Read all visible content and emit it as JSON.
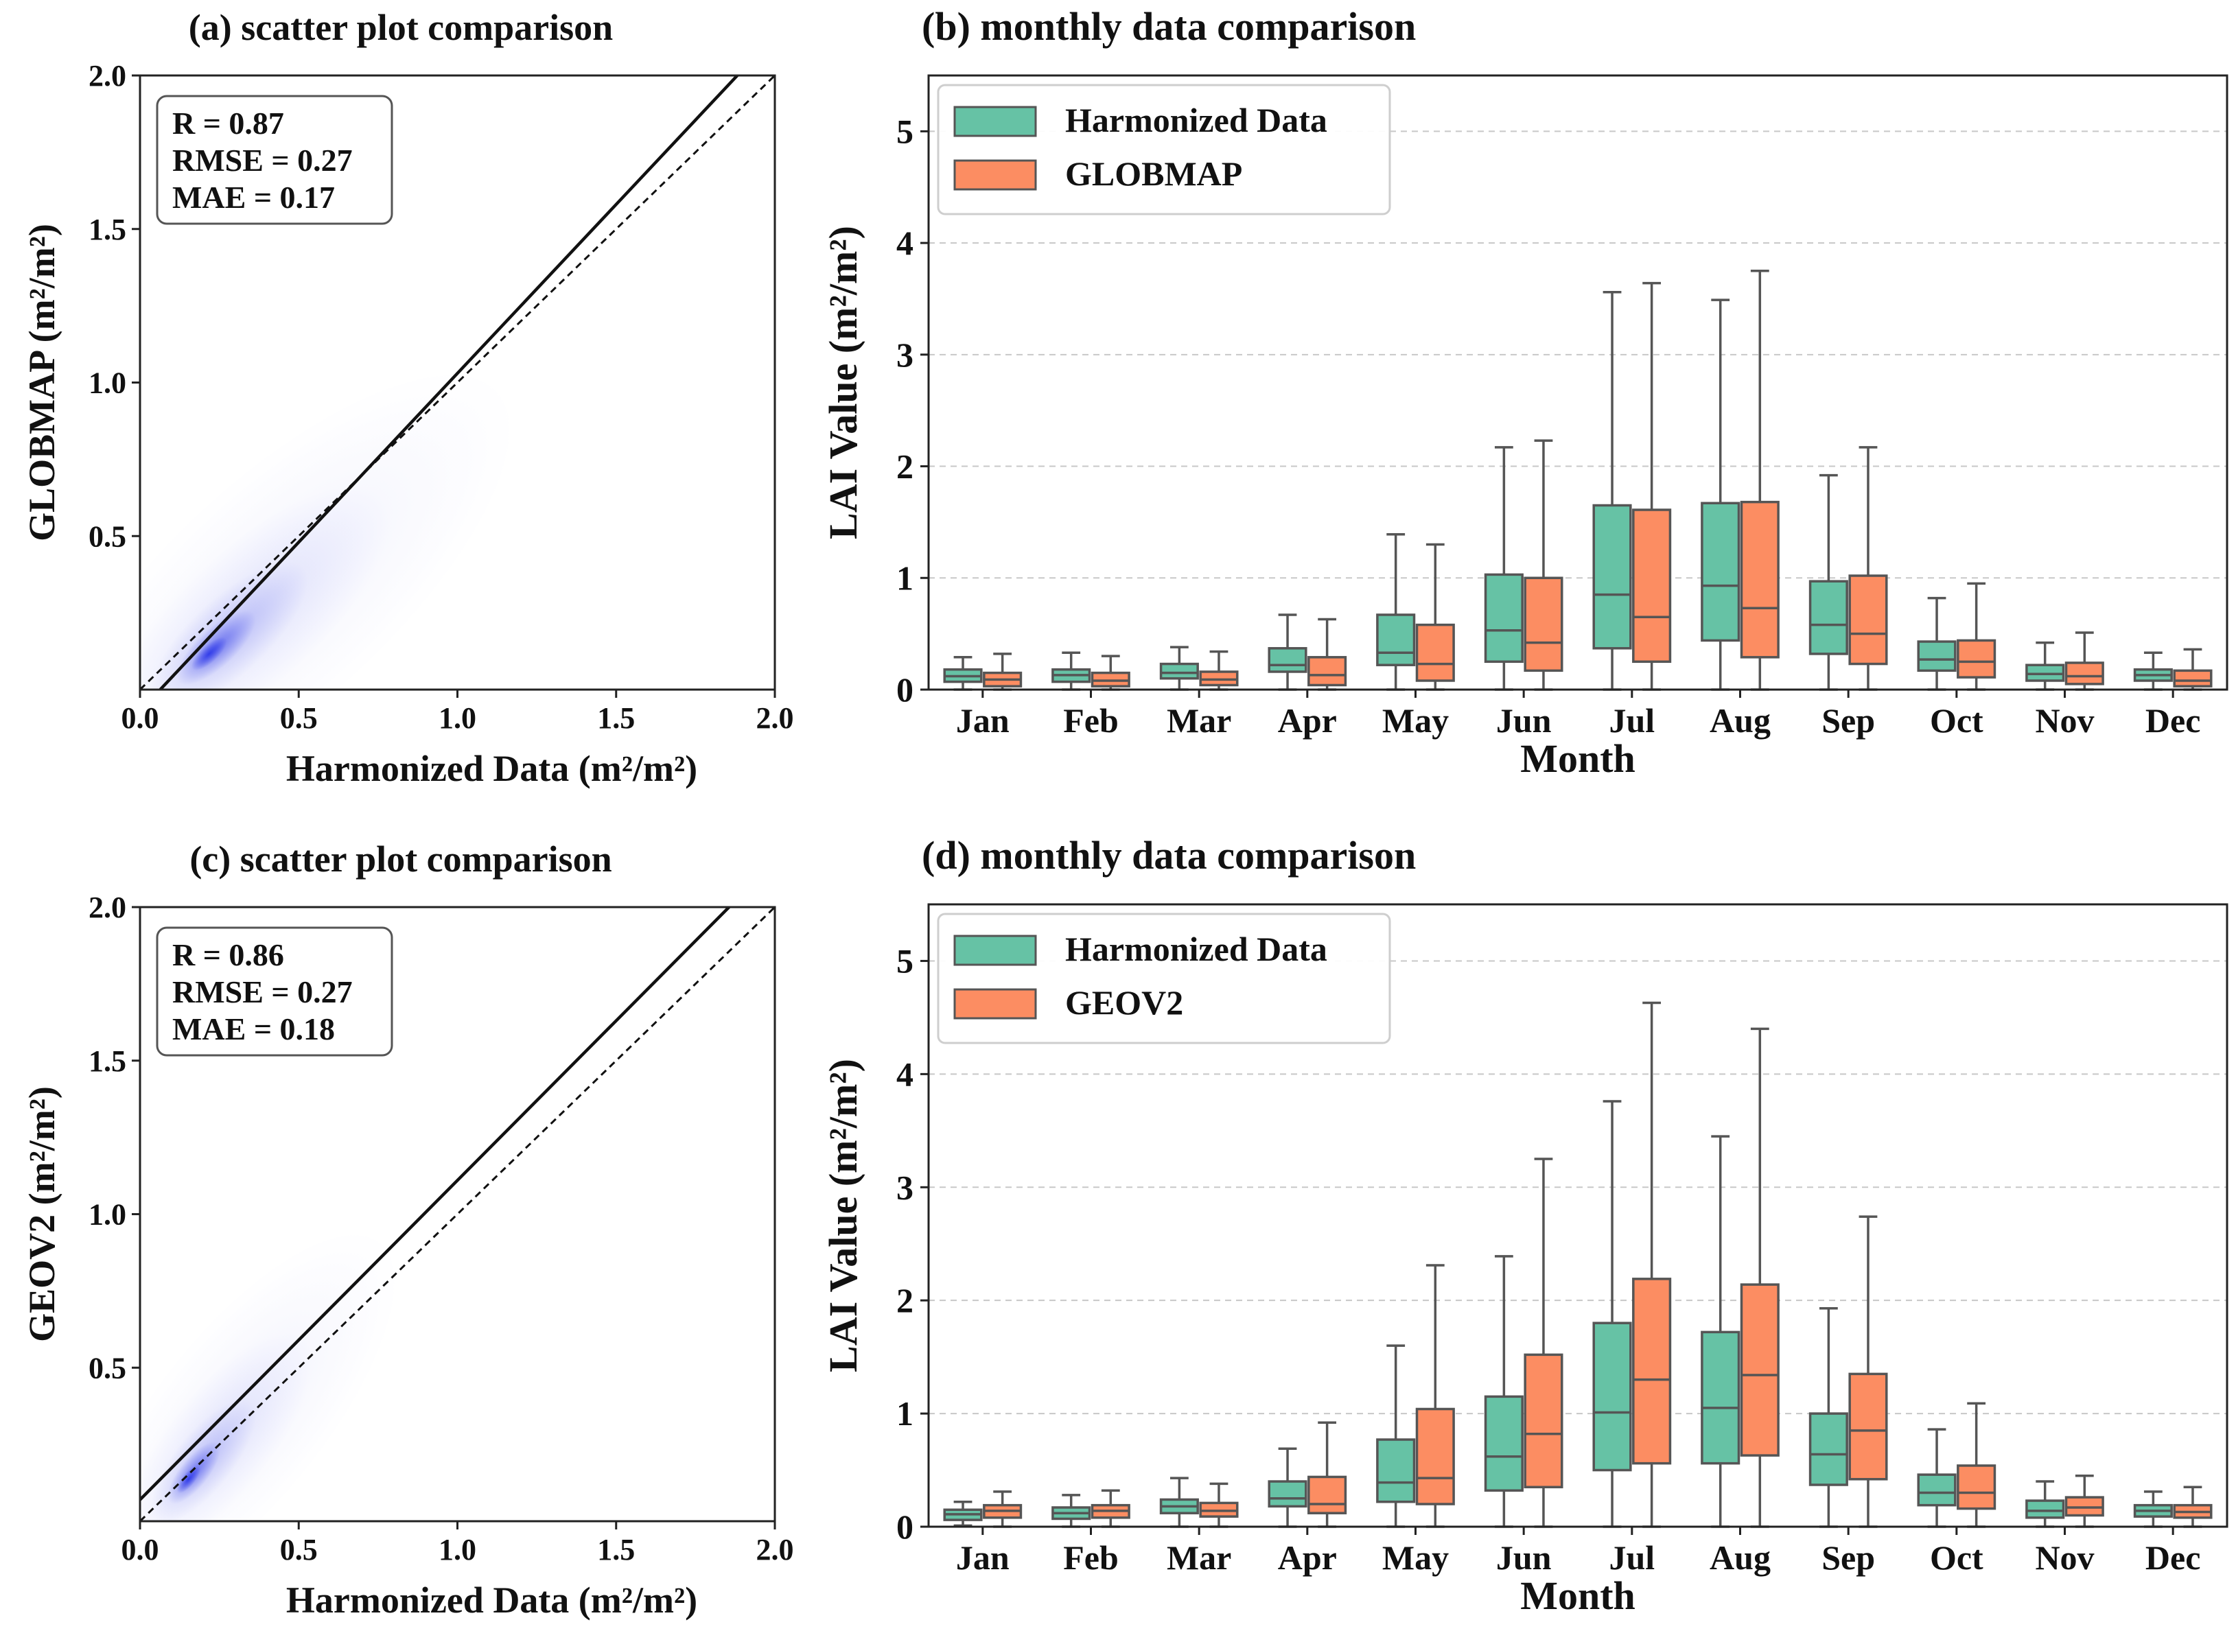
{
  "figure": {
    "colors": {
      "harmonized": "#66c2a5",
      "comparison": "#fc8d62",
      "density": "#2a35e8",
      "box_edge": "#555555",
      "axis": "#222222",
      "grid": "#c8c8c8"
    },
    "month_axis_label": "Month",
    "lai_axis_label": "LAI  Value (m²/m²)"
  },
  "chart_data": [
    {
      "id": "a",
      "type": "scatter",
      "title": "(a) scatter plot comparison",
      "xlabel": "Harmonized Data (m²/m²)",
      "ylabel": "GLOBMAP (m²/m²)",
      "xlim": [
        0,
        2
      ],
      "ylim": [
        0,
        2
      ],
      "xticks": [
        "0.0",
        "0.5",
        "1.0",
        "1.5",
        "2.0"
      ],
      "yticks": [
        "0.5",
        "1.0",
        "1.5",
        "2.0"
      ],
      "stats": [
        "R = 0.87",
        "RMSE = 0.27",
        "MAE = 0.17"
      ],
      "fit_line": {
        "slope": 1.1,
        "intercept": -0.07
      },
      "one_to_one": true,
      "density": {
        "center": [
          0.2,
          0.1
        ],
        "spread": 0.16,
        "trend_slope": 0.92
      }
    },
    {
      "id": "b",
      "type": "box",
      "title": "(b) monthly data comparison",
      "xlabel": "Month",
      "ylabel": "LAI  Value (m²/m²)",
      "ylim": [
        0,
        5.5
      ],
      "yticks": [
        "0",
        "1",
        "2",
        "3",
        "4",
        "5"
      ],
      "categories": [
        "Jan",
        "Feb",
        "Mar",
        "Apr",
        "May",
        "Jun",
        "Jul",
        "Aug",
        "Sep",
        "Oct",
        "Nov",
        "Dec"
      ],
      "legend": [
        "Harmonized Data",
        "GLOBMAP"
      ],
      "series": [
        {
          "name": "Harmonized Data",
          "boxes": [
            [
              0,
              0.07,
              0.12,
              0.18,
              0.29
            ],
            [
              0,
              0.07,
              0.13,
              0.18,
              0.33
            ],
            [
              0,
              0.1,
              0.15,
              0.23,
              0.38
            ],
            [
              0,
              0.16,
              0.22,
              0.37,
              0.67
            ],
            [
              0,
              0.22,
              0.33,
              0.67,
              1.39
            ],
            [
              0,
              0.25,
              0.53,
              1.03,
              2.17
            ],
            [
              0,
              0.37,
              0.85,
              1.65,
              3.56
            ],
            [
              0,
              0.44,
              0.93,
              1.67,
              3.49
            ],
            [
              0,
              0.32,
              0.58,
              0.97,
              1.92
            ],
            [
              0,
              0.17,
              0.27,
              0.43,
              0.82
            ],
            [
              0,
              0.08,
              0.14,
              0.22,
              0.42
            ],
            [
              0,
              0.08,
              0.13,
              0.18,
              0.33
            ]
          ]
        },
        {
          "name": "GLOBMAP",
          "boxes": [
            [
              0,
              0.03,
              0.09,
              0.15,
              0.32
            ],
            [
              0,
              0.03,
              0.08,
              0.15,
              0.3
            ],
            [
              0,
              0.04,
              0.09,
              0.16,
              0.34
            ],
            [
              0,
              0.04,
              0.13,
              0.29,
              0.63
            ],
            [
              0,
              0.08,
              0.23,
              0.58,
              1.3
            ],
            [
              0,
              0.17,
              0.42,
              1.0,
              2.23
            ],
            [
              0,
              0.25,
              0.65,
              1.61,
              3.64
            ],
            [
              0,
              0.29,
              0.73,
              1.68,
              3.75
            ],
            [
              0,
              0.23,
              0.5,
              1.02,
              2.17
            ],
            [
              0,
              0.11,
              0.25,
              0.44,
              0.95
            ],
            [
              0,
              0.05,
              0.12,
              0.24,
              0.51
            ],
            [
              0,
              0.03,
              0.08,
              0.17,
              0.36
            ]
          ]
        }
      ]
    },
    {
      "id": "c",
      "type": "scatter",
      "title": "(c) scatter plot comparison",
      "xlabel": "Harmonized Data (m²/m²)",
      "ylabel": "GEOV2 (m²/m²)",
      "xlim": [
        0,
        2
      ],
      "ylim": [
        0,
        2
      ],
      "xticks": [
        "0.0",
        "0.5",
        "1.0",
        "1.5",
        "2.0"
      ],
      "yticks": [
        "0.5",
        "1.0",
        "1.5",
        "2.0"
      ],
      "stats": [
        "R = 0.86",
        "RMSE = 0.27",
        "MAE = 0.18"
      ],
      "fit_line": {
        "slope": 1.04,
        "intercept": 0.07
      },
      "one_to_one": true,
      "density": {
        "center": [
          0.14,
          0.12
        ],
        "spread": 0.12,
        "trend_slope": 1.25
      }
    },
    {
      "id": "d",
      "type": "box",
      "title": "(d) monthly data comparison",
      "xlabel": "Month",
      "ylabel": "LAI  Value (m²/m²)",
      "ylim": [
        0,
        5.5
      ],
      "yticks": [
        "0",
        "1",
        "2",
        "3",
        "4",
        "5"
      ],
      "categories": [
        "Jan",
        "Feb",
        "Mar",
        "Apr",
        "May",
        "Jun",
        "Jul",
        "Aug",
        "Sep",
        "Oct",
        "Nov",
        "Dec"
      ],
      "legend": [
        "Harmonized Data",
        "GEOV2"
      ],
      "series": [
        {
          "name": "Harmonized Data",
          "boxes": [
            [
              0.01,
              0.06,
              0.11,
              0.15,
              0.22
            ],
            [
              0,
              0.07,
              0.12,
              0.17,
              0.28
            ],
            [
              0,
              0.12,
              0.18,
              0.24,
              0.43
            ],
            [
              0,
              0.18,
              0.25,
              0.4,
              0.69
            ],
            [
              0,
              0.22,
              0.39,
              0.77,
              1.6
            ],
            [
              0,
              0.32,
              0.62,
              1.15,
              2.39
            ],
            [
              0,
              0.5,
              1.01,
              1.8,
              3.76
            ],
            [
              0,
              0.56,
              1.05,
              1.72,
              3.45
            ],
            [
              0,
              0.37,
              0.64,
              1.0,
              1.93
            ],
            [
              0,
              0.19,
              0.3,
              0.46,
              0.86
            ],
            [
              0,
              0.08,
              0.14,
              0.23,
              0.4
            ],
            [
              0,
              0.09,
              0.14,
              0.19,
              0.31
            ]
          ]
        },
        {
          "name": "GEOV2",
          "boxes": [
            [
              0,
              0.08,
              0.14,
              0.19,
              0.31
            ],
            [
              0,
              0.08,
              0.14,
              0.19,
              0.32
            ],
            [
              0,
              0.09,
              0.14,
              0.21,
              0.38
            ],
            [
              0,
              0.12,
              0.2,
              0.44,
              0.92
            ],
            [
              0,
              0.2,
              0.43,
              1.04,
              2.31
            ],
            [
              0,
              0.35,
              0.82,
              1.52,
              3.25
            ],
            [
              0,
              0.56,
              1.3,
              2.19,
              4.63
            ],
            [
              0,
              0.63,
              1.34,
              2.14,
              4.4
            ],
            [
              0,
              0.42,
              0.85,
              1.35,
              2.74
            ],
            [
              0,
              0.16,
              0.3,
              0.54,
              1.09
            ],
            [
              0,
              0.1,
              0.17,
              0.26,
              0.45
            ],
            [
              0,
              0.08,
              0.13,
              0.19,
              0.35
            ]
          ]
        }
      ]
    }
  ]
}
